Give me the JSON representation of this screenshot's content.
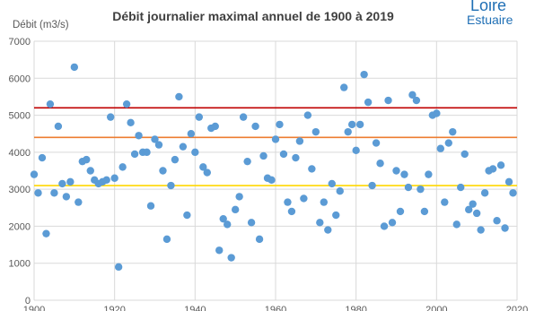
{
  "logo": {
    "line1": "Loire",
    "line2": "Estuaire",
    "color": "#1f6fb5"
  },
  "chart_data": {
    "type": "scatter",
    "title": "Débit journalier maximal annuel de 1900 à 2019",
    "ylabel": "Débit (m3/s)",
    "xlabel": "",
    "xlim": [
      1900,
      2020
    ],
    "ylim": [
      0,
      7000
    ],
    "x_ticks": [
      1900,
      1920,
      1940,
      1960,
      1980,
      2000,
      2020
    ],
    "y_ticks": [
      0,
      1000,
      2000,
      3000,
      4000,
      5000,
      6000,
      7000
    ],
    "grid": true,
    "point_color": "#5b9bd5",
    "reference_lines": [
      {
        "value": 5200,
        "color": "#c00000"
      },
      {
        "value": 4400,
        "color": "#ed7d31"
      },
      {
        "value": 3100,
        "color": "#ffd700"
      }
    ],
    "x": [
      1900,
      1901,
      1902,
      1903,
      1904,
      1905,
      1906,
      1907,
      1908,
      1909,
      1910,
      1911,
      1912,
      1913,
      1914,
      1915,
      1916,
      1917,
      1918,
      1919,
      1920,
      1921,
      1922,
      1923,
      1924,
      1925,
      1926,
      1927,
      1928,
      1929,
      1930,
      1931,
      1932,
      1933,
      1934,
      1935,
      1936,
      1937,
      1938,
      1939,
      1940,
      1941,
      1942,
      1943,
      1944,
      1945,
      1946,
      1947,
      1948,
      1949,
      1950,
      1951,
      1952,
      1953,
      1954,
      1955,
      1956,
      1957,
      1958,
      1959,
      1960,
      1961,
      1962,
      1963,
      1964,
      1965,
      1966,
      1967,
      1968,
      1969,
      1970,
      1971,
      1972,
      1973,
      1974,
      1975,
      1976,
      1977,
      1978,
      1979,
      1980,
      1981,
      1982,
      1983,
      1984,
      1985,
      1986,
      1987,
      1988,
      1989,
      1990,
      1991,
      1992,
      1993,
      1994,
      1995,
      1996,
      1997,
      1998,
      1999,
      2000,
      2001,
      2002,
      2003,
      2004,
      2005,
      2006,
      2007,
      2008,
      2009,
      2010,
      2011,
      2012,
      2013,
      2014,
      2015,
      2016,
      2017,
      2018,
      2019
    ],
    "y": [
      3400,
      2900,
      3850,
      1800,
      5300,
      2900,
      4700,
      3150,
      2800,
      3200,
      6300,
      2650,
      3750,
      3800,
      3500,
      3250,
      3150,
      3200,
      3250,
      4950,
      3300,
      900,
      3600,
      5300,
      4800,
      3950,
      4450,
      4000,
      4000,
      2550,
      4350,
      4200,
      3500,
      1650,
      3100,
      3800,
      5500,
      4150,
      2300,
      4500,
      4000,
      4950,
      3600,
      3450,
      4650,
      4700,
      1350,
      2200,
      2050,
      1150,
      2450,
      2800,
      4950,
      3750,
      2100,
      4700,
      1650,
      3900,
      3300,
      3250,
      4350,
      4750,
      3950,
      2650,
      2400,
      3850,
      4300,
      2750,
      5000,
      3550,
      4550,
      2100,
      2650,
      1900,
      3150,
      2300,
      2950,
      5750,
      4550,
      4750,
      4050,
      4750,
      6100,
      5350,
      3100,
      4250,
      3700,
      2000,
      5400,
      2100,
      3500,
      2400,
      3400,
      3050,
      5550,
      5400,
      3000,
      2400,
      3400,
      5000,
      5050,
      4100,
      2650,
      4250,
      4550,
      2050,
      3050,
      3950,
      2450,
      2600,
      2350,
      1900,
      2900,
      3500,
      3550,
      2150,
      3650,
      1950,
      3200,
      2900
    ]
  }
}
